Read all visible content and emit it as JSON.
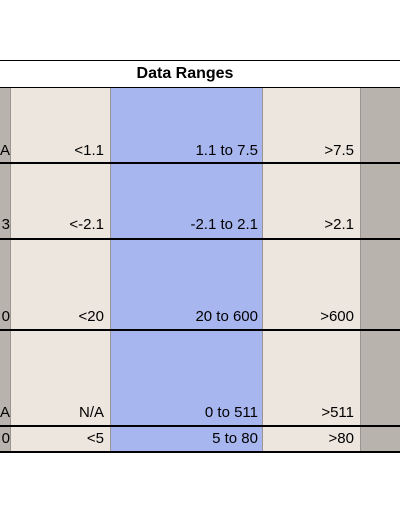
{
  "table": {
    "title": "Data Ranges",
    "rows": [
      {
        "edge": "A",
        "low": "<1.1",
        "mid": "1.1 to 7.5",
        "high": ">7.5"
      },
      {
        "edge": "3",
        "low": "<-2.1",
        "mid": "-2.1 to 2.1",
        "high": ">2.1"
      },
      {
        "edge": "0",
        "low": "<20",
        "mid": "20 to 600",
        "high": ">600"
      },
      {
        "edge": "A",
        "low": "N/A",
        "mid": "0 to 511",
        "high": ">511"
      },
      {
        "edge": "0",
        "low": "<5",
        "mid": "5  to 80",
        "high": ">80"
      }
    ]
  },
  "colors": {
    "blue_column": "#a8b6f0",
    "beige_column": "#ede6de",
    "gray_column": "#b8b3ac"
  }
}
